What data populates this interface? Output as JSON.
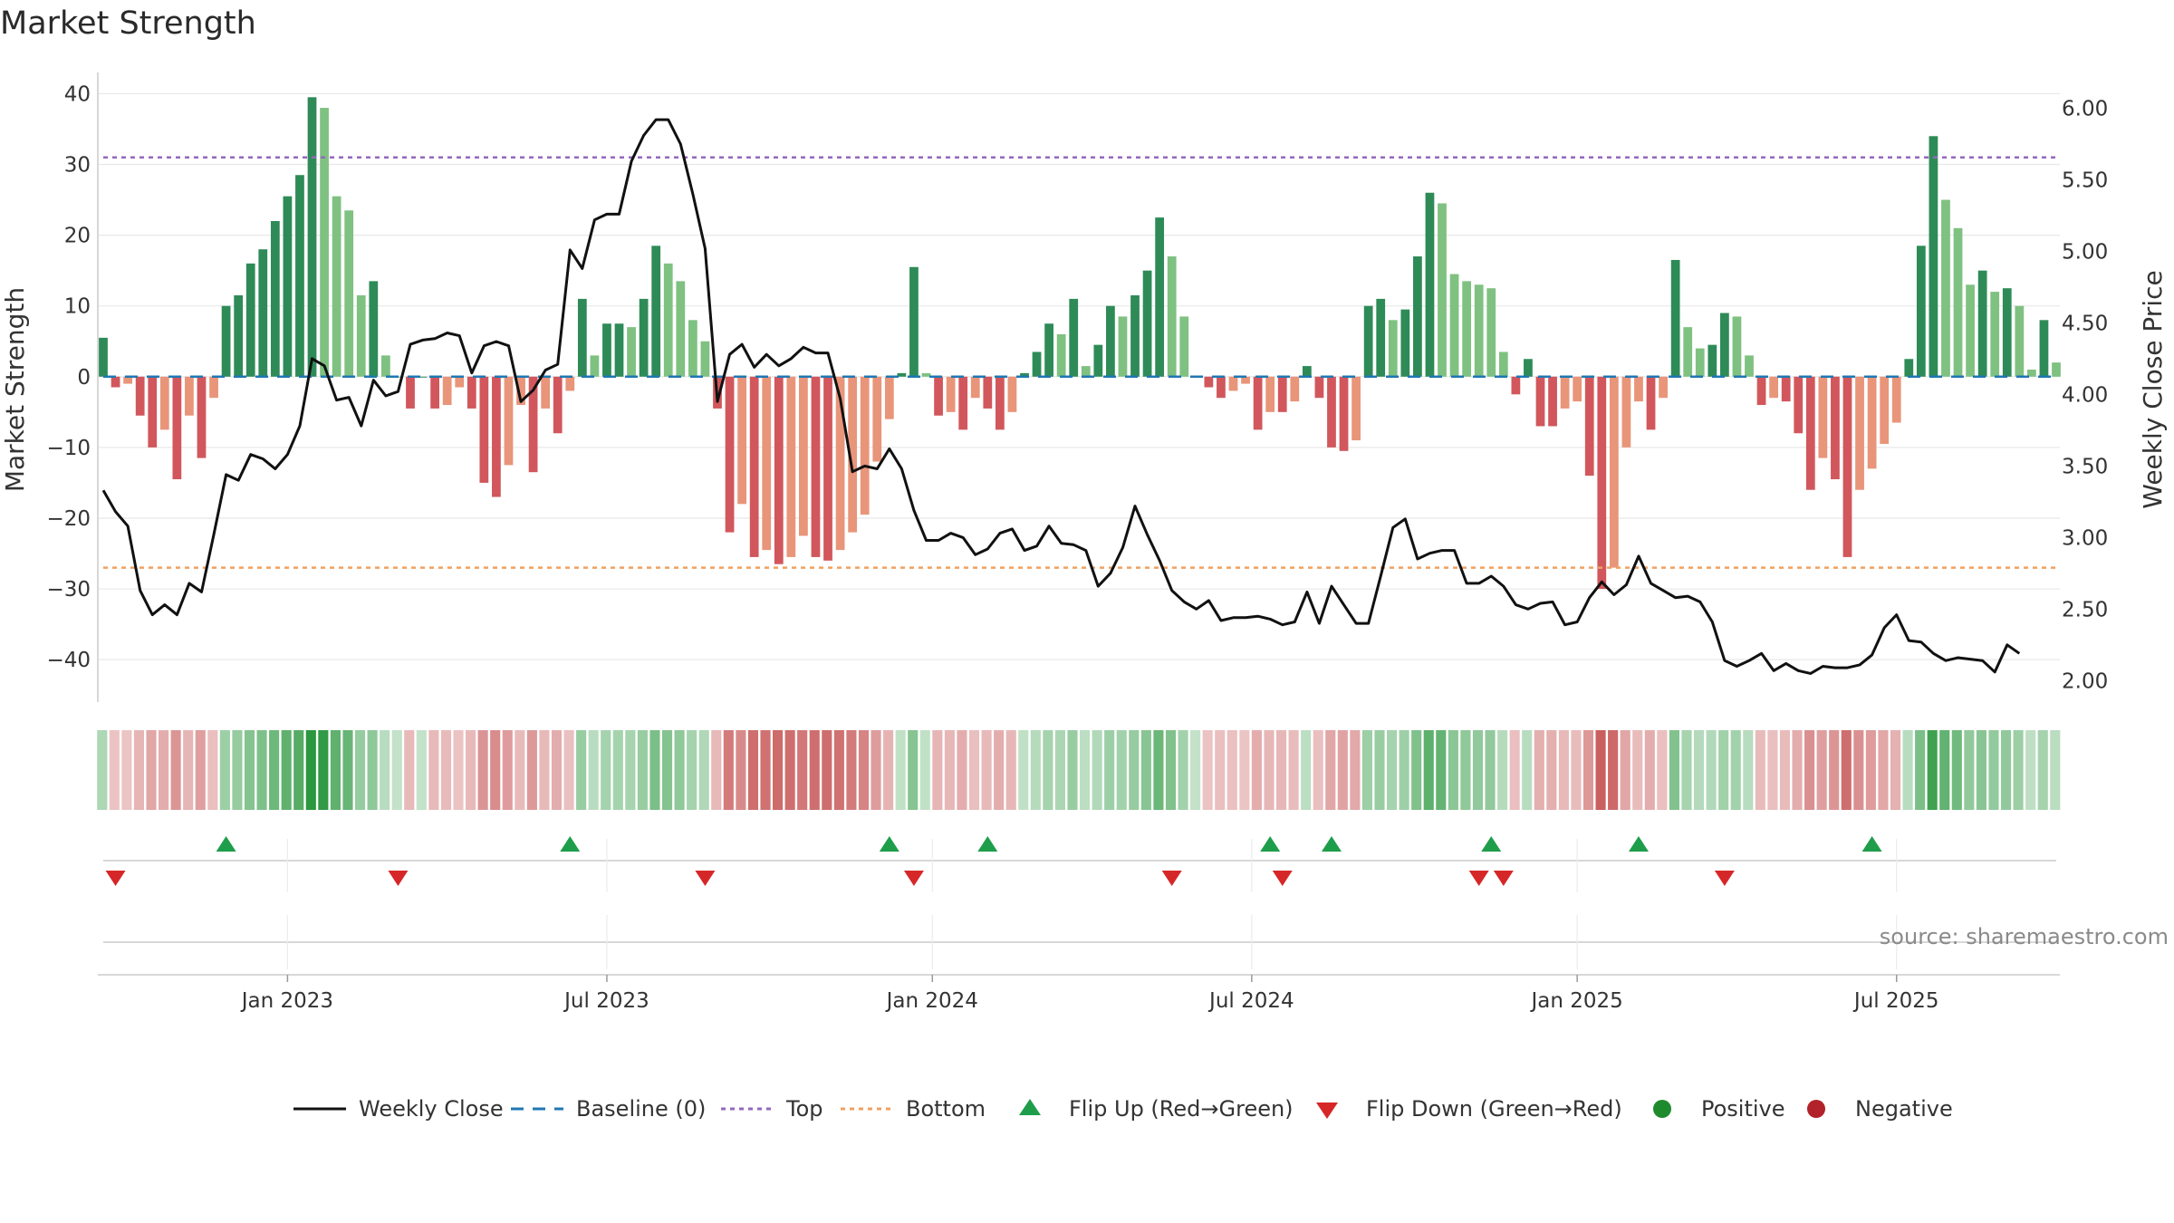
{
  "chart_data": {
    "type": "bar",
    "title": "Market Strength",
    "ylabel": "Market Strength",
    "y2label": "Weekly Close Price",
    "ylim": [
      -46,
      43
    ],
    "y2lim": [
      1.85,
      6.25
    ],
    "yticks": [
      40,
      30,
      20,
      10,
      0,
      -10,
      -20,
      -30,
      -40
    ],
    "yticks_labels": [
      "40",
      "30",
      "20",
      "10",
      "0",
      "−10",
      "−20",
      "−30",
      "−40"
    ],
    "y2ticks": [
      6.0,
      5.5,
      5.0,
      4.5,
      4.0,
      3.5,
      3.0,
      2.5,
      2.0
    ],
    "y2ticks_labels": [
      "6.00",
      "5.50",
      "5.00",
      "4.50",
      "4.00",
      "3.50",
      "3.00",
      "2.50",
      "2.00"
    ],
    "xticks_week": [
      15,
      41,
      67.5,
      93.5,
      120,
      146
    ],
    "xticks_labels": [
      "Jan 2023",
      "Jul 2023",
      "Jan 2024",
      "Jul 2024",
      "Jan 2025",
      "Jul 2025"
    ],
    "top_level": 31,
    "bottom_level": -27,
    "source": "source: sharemaestro.com",
    "strength": [
      5.5,
      -1.5,
      -1,
      -5.5,
      -10,
      -7.5,
      -14.5,
      -5.5,
      -11.5,
      -3,
      10,
      11.5,
      16,
      18,
      22,
      25.5,
      28.5,
      39.5,
      38,
      25.5,
      23.5,
      11.5,
      13.5,
      3,
      0,
      -4.5,
      0,
      -4.5,
      -4,
      -1.5,
      -4.5,
      -15,
      -17,
      -12.5,
      -4,
      -13.5,
      -4.5,
      -8,
      -2,
      11,
      3,
      7.5,
      7.5,
      7,
      11,
      18.5,
      16,
      13.5,
      8,
      5,
      -4.5,
      -22,
      -18,
      -25.5,
      -24.5,
      -26.5,
      -25.5,
      -22.5,
      -25.5,
      -26,
      -24.5,
      -22,
      -19.5,
      -12,
      -6,
      0.5,
      15.5,
      0.5,
      -5.5,
      -5,
      -7.5,
      -3,
      -4.5,
      -7.5,
      -5,
      0.5,
      3.5,
      7.5,
      6,
      11,
      1.5,
      4.5,
      10,
      8.5,
      11.5,
      15,
      22.5,
      17,
      8.5,
      0,
      -1.5,
      -3,
      -2,
      -1,
      -7.5,
      -5,
      -5,
      -3.5,
      1.5,
      -3,
      -10,
      -10.5,
      -9,
      10,
      11,
      8,
      9.5,
      17,
      26,
      24.5,
      14.5,
      13.5,
      13,
      12.5,
      3.5,
      -2.5,
      2.5,
      -7,
      -7,
      -4.5,
      -3.5,
      -14,
      -30,
      -27,
      -10,
      -3.5,
      -7.5,
      -3,
      16.5,
      7,
      4,
      4.5,
      9,
      8.5,
      3,
      -4,
      -3,
      -3.5,
      -8,
      -16,
      -11.5,
      -14.5,
      -25.5,
      -16,
      -13,
      -9.5,
      -6.5,
      2.5,
      18.5,
      34,
      25,
      21,
      13,
      15,
      12,
      12.5,
      10,
      1,
      8,
      2
    ],
    "close": [
      3.33,
      3.18,
      3.08,
      2.63,
      2.46,
      2.53,
      2.46,
      2.68,
      2.62,
      3.02,
      3.44,
      3.4,
      3.58,
      3.55,
      3.48,
      3.58,
      3.78,
      4.25,
      4.2,
      3.96,
      3.98,
      3.78,
      4.1,
      3.99,
      4.02,
      4.35,
      4.38,
      4.39,
      4.43,
      4.41,
      4.15,
      4.34,
      4.37,
      4.34,
      3.95,
      4.03,
      4.17,
      4.21,
      5.01,
      4.88,
      5.22,
      5.26,
      5.26,
      5.63,
      5.81,
      5.92,
      5.92,
      5.75,
      5.4,
      5.02,
      3.95,
      4.28,
      4.35,
      4.19,
      4.28,
      4.2,
      4.25,
      4.33,
      4.29,
      4.29,
      3.97,
      3.46,
      3.5,
      3.48,
      3.62,
      3.48,
      3.19,
      2.98,
      2.98,
      3.03,
      3.0,
      2.88,
      2.92,
      3.03,
      3.06,
      2.91,
      2.94,
      3.08,
      2.96,
      2.95,
      2.91,
      2.66,
      2.75,
      2.93,
      3.22,
      3.02,
      2.84,
      2.63,
      2.55,
      2.5,
      2.56,
      2.42,
      2.44,
      2.44,
      2.45,
      2.43,
      2.39,
      2.41,
      2.62,
      2.4,
      2.66,
      2.53,
      2.4,
      2.4,
      2.73,
      3.07,
      3.13,
      2.85,
      2.89,
      2.91,
      2.91,
      2.68,
      2.68,
      2.73,
      2.66,
      2.53,
      2.5,
      2.54,
      2.55,
      2.39,
      2.41,
      2.58,
      2.69,
      2.6,
      2.67,
      2.87,
      2.68,
      2.63,
      2.58,
      2.59,
      2.55,
      2.41,
      2.14,
      2.1,
      2.14,
      2.19,
      2.07,
      2.12,
      2.07,
      2.05,
      2.1,
      2.09,
      2.09,
      2.11,
      2.18,
      2.37,
      2.46,
      2.28,
      2.27,
      2.19,
      2.14,
      2.16,
      2.15,
      2.14,
      2.06,
      2.25,
      2.19
    ],
    "flip_up_weeks": [
      10,
      38,
      64,
      72,
      95,
      100,
      113,
      125,
      144
    ],
    "flip_down_weeks": [
      1,
      24,
      49,
      66,
      87,
      96,
      112,
      114,
      132
    ],
    "legend": [
      {
        "label": "Weekly Close",
        "kind": "line",
        "color": "#111111"
      },
      {
        "label": "Baseline (0)",
        "kind": "dash",
        "color": "#1f77b4"
      },
      {
        "label": "Top",
        "kind": "dot",
        "color": "#9467bd"
      },
      {
        "label": "Bottom",
        "kind": "dot",
        "color": "#f0a060"
      },
      {
        "label": "Flip Up (Red→Green)",
        "kind": "tri-up",
        "color": "#1e9e4a"
      },
      {
        "label": "Flip Down (Green→Red)",
        "kind": "tri-down",
        "color": "#d62728"
      },
      {
        "label": "Positive",
        "kind": "circle",
        "color": "#1e8a2e"
      },
      {
        "label": "Negative",
        "kind": "circle",
        "color": "#b2222a"
      }
    ],
    "colors": {
      "pos_dark": "#2e8b57",
      "pos_light": "#7fc181",
      "neg_dark": "#d1575c",
      "neg_light": "#e8957a",
      "close_line": "#111111",
      "baseline": "#1f77b4",
      "top": "#9467bd",
      "bottom": "#f0a060",
      "grid": "#e8e8e8"
    }
  }
}
